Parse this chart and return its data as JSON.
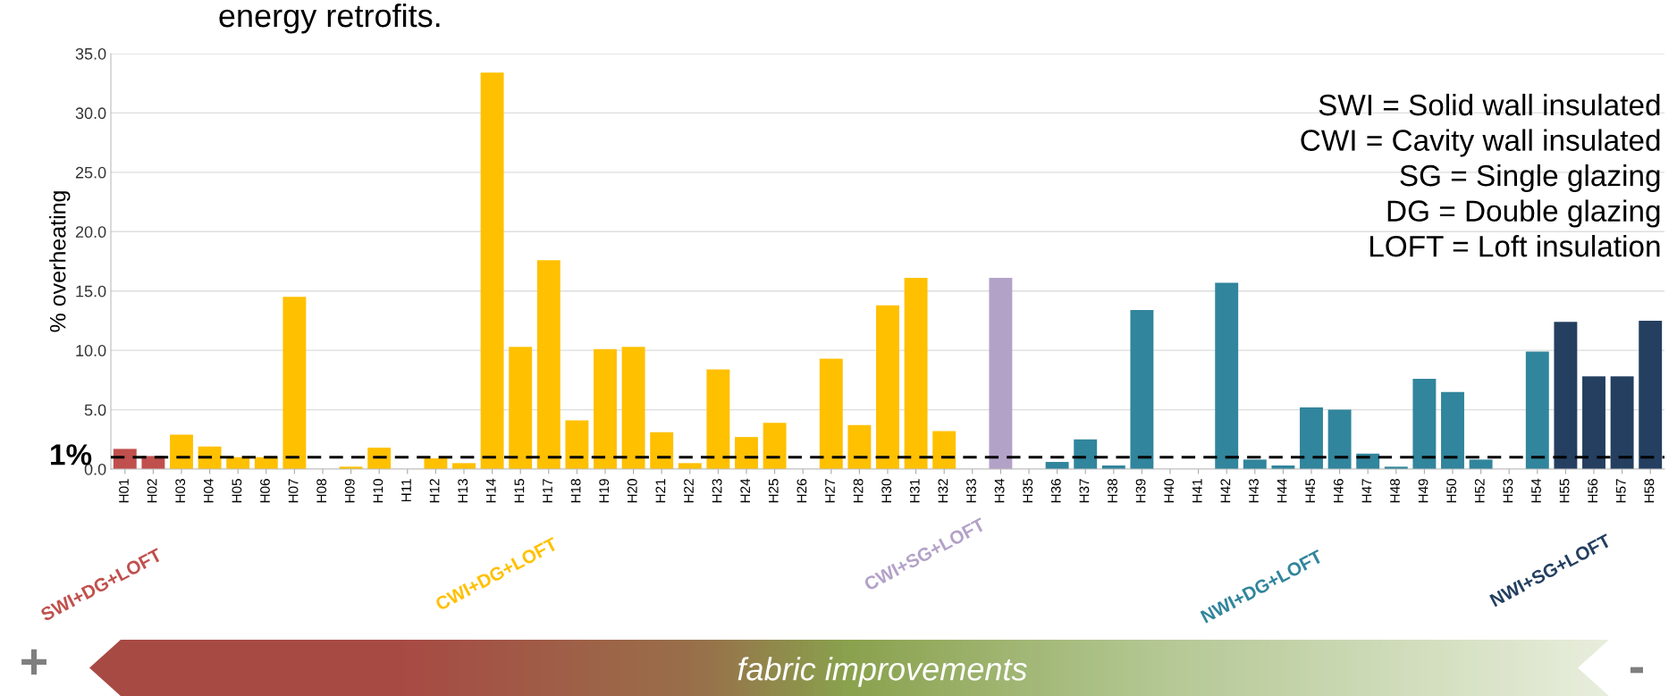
{
  "chart_data": {
    "type": "bar",
    "title": "energy retrofits.",
    "ylabel": "% overheating",
    "categories": [
      "H01",
      "H02",
      "H03",
      "H04",
      "H05",
      "H06",
      "H07",
      "H08",
      "H09",
      "H10",
      "H11",
      "H12",
      "H13",
      "H14",
      "H15",
      "H17",
      "H18",
      "H19",
      "H20",
      "H21",
      "H22",
      "H23",
      "H24",
      "H25",
      "H26",
      "H27",
      "H28",
      "H30",
      "H31",
      "H32",
      "H33",
      "H34",
      "H35",
      "H36",
      "H37",
      "H38",
      "H39",
      "H40",
      "H41",
      "H42",
      "H43",
      "H44",
      "H45",
      "H46",
      "H47",
      "H48",
      "H49",
      "H50",
      "H52",
      "H53",
      "H54",
      "H55",
      "H56",
      "H57",
      "H58"
    ],
    "series": [
      {
        "name": "SWI+DG+LOFT",
        "color": "#c0504d",
        "values": [
          1.7,
          1.1,
          null,
          null,
          null,
          null,
          null,
          null,
          null,
          null,
          null,
          null,
          null,
          null,
          null,
          null,
          null,
          null,
          null,
          null,
          null,
          null,
          null,
          null,
          null,
          null,
          null,
          null,
          null,
          null,
          null,
          null,
          null,
          null,
          null,
          null,
          null,
          null,
          null,
          null,
          null,
          null,
          null,
          null,
          null,
          null,
          null,
          null,
          null,
          null,
          null,
          null,
          null,
          null,
          null
        ]
      },
      {
        "name": "CWI+DG+LOFT",
        "color": "#ffc000",
        "values": [
          null,
          null,
          2.9,
          1.9,
          1.0,
          1.0,
          14.5,
          0,
          0.2,
          1.8,
          0,
          0.9,
          0.5,
          33.4,
          10.3,
          17.6,
          4.1,
          10.1,
          10.3,
          3.1,
          0.5,
          8.4,
          2.7,
          3.9,
          0,
          9.3,
          3.7,
          13.8,
          16.1,
          3.2,
          null,
          null,
          null,
          null,
          null,
          null,
          null,
          null,
          null,
          null,
          null,
          null,
          null,
          null,
          null,
          null,
          null,
          null,
          null,
          null,
          null,
          null,
          null,
          null,
          null
        ]
      },
      {
        "name": "CWI+SG+LOFT",
        "color": "#b3a2c7",
        "values": [
          null,
          null,
          null,
          null,
          null,
          null,
          null,
          null,
          null,
          null,
          null,
          null,
          null,
          null,
          null,
          null,
          null,
          null,
          null,
          null,
          null,
          null,
          null,
          null,
          null,
          null,
          null,
          null,
          null,
          null,
          0,
          16.1,
          null,
          null,
          null,
          null,
          null,
          null,
          null,
          null,
          null,
          null,
          null,
          null,
          null,
          null,
          null,
          null,
          null,
          null,
          null,
          null,
          null,
          null,
          null
        ]
      },
      {
        "name": "NWI+DG+LOFT",
        "color": "#31859c",
        "values": [
          null,
          null,
          null,
          null,
          null,
          null,
          null,
          null,
          null,
          null,
          null,
          null,
          null,
          null,
          null,
          null,
          null,
          null,
          null,
          null,
          null,
          null,
          null,
          null,
          null,
          null,
          null,
          null,
          null,
          null,
          null,
          null,
          0,
          0.6,
          2.5,
          0.3,
          13.4,
          0,
          0,
          15.7,
          0.8,
          0.3,
          5.2,
          5.0,
          1.3,
          0.2,
          7.6,
          6.5,
          0.8,
          0,
          9.9,
          null,
          null,
          null,
          null
        ]
      },
      {
        "name": "NWI+SG+LOFT",
        "color": "#243f60",
        "values": [
          null,
          null,
          null,
          null,
          null,
          null,
          null,
          null,
          null,
          null,
          null,
          null,
          null,
          null,
          null,
          null,
          null,
          null,
          null,
          null,
          null,
          null,
          null,
          null,
          null,
          null,
          null,
          null,
          null,
          null,
          null,
          null,
          null,
          null,
          null,
          null,
          null,
          null,
          null,
          null,
          null,
          null,
          null,
          null,
          null,
          null,
          null,
          null,
          null,
          null,
          null,
          12.4,
          7.8,
          7.8,
          12.5
        ]
      }
    ],
    "ylim": [
      0,
      35
    ],
    "yticks": [
      {
        "value": 0,
        "label": "0.0"
      },
      {
        "value": 5,
        "label": "5.0"
      },
      {
        "value": 10,
        "label": "10.0"
      },
      {
        "value": 15,
        "label": "15.0"
      },
      {
        "value": 20,
        "label": "20.0"
      },
      {
        "value": 25,
        "label": "25.0"
      },
      {
        "value": 30,
        "label": "30.0"
      },
      {
        "value": 35,
        "label": "35.0"
      }
    ],
    "grid": "y",
    "legend": false,
    "ref_lines": [
      {
        "axis": "y",
        "value": 1,
        "label": "1%",
        "color": "#000000",
        "line_style": "dashed"
      }
    ],
    "annotations": [
      "SWI = Solid wall insulated",
      "CWI = Cavity wall insulated",
      "SG = Single glazing",
      "DG = Double glazing",
      "LOFT = Loft insulation",
      "fabric improvements",
      "+",
      "-"
    ]
  }
}
